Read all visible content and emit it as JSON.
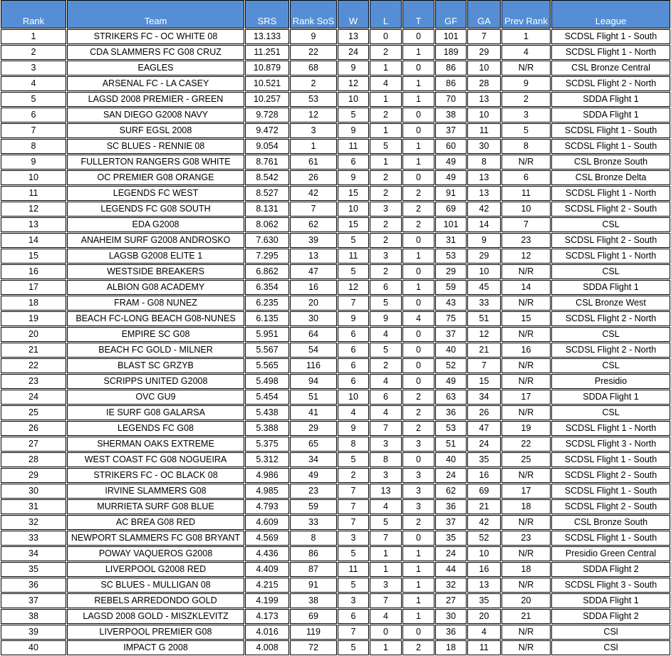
{
  "header_color": "#558ED5",
  "columns": [
    "Rank",
    "Team",
    "SRS",
    "Rank SoS",
    "W",
    "L",
    "T",
    "GF",
    "GA",
    "Prev Rank",
    "League"
  ],
  "rows": [
    [
      "1",
      "STRIKERS FC - OC WHITE 08",
      "13.133",
      "9",
      "13",
      "0",
      "0",
      "101",
      "7",
      "1",
      "SCDSL Flight 1 - South"
    ],
    [
      "2",
      "CDA SLAMMERS FC G08 CRUZ",
      "11.251",
      "22",
      "24",
      "2",
      "1",
      "189",
      "29",
      "4",
      "SCDSL Flight 1 - North"
    ],
    [
      "3",
      "EAGLES",
      "10.879",
      "68",
      "9",
      "1",
      "0",
      "86",
      "10",
      "N/R",
      "CSL Bronze Central"
    ],
    [
      "4",
      "ARSENAL FC - LA CASEY",
      "10.521",
      "2",
      "12",
      "4",
      "1",
      "86",
      "28",
      "9",
      "SCDSL Flight 2 - North"
    ],
    [
      "5",
      "LAGSD 2008 PREMIER - GREEN",
      "10.257",
      "53",
      "10",
      "1",
      "1",
      "70",
      "13",
      "2",
      "SDDA Flight 1"
    ],
    [
      "6",
      "SAN DIEGO G2008 NAVY",
      "9.728",
      "12",
      "5",
      "2",
      "0",
      "38",
      "10",
      "3",
      "SDDA Flight 1"
    ],
    [
      "7",
      "SURF EGSL 2008",
      "9.472",
      "3",
      "9",
      "1",
      "0",
      "37",
      "11",
      "5",
      "SCDSL Flight 1 - South"
    ],
    [
      "8",
      "SC BLUES - RENNIE 08",
      "9.054",
      "1",
      "11",
      "5",
      "1",
      "60",
      "30",
      "8",
      "SCDSL Flight 1 - South"
    ],
    [
      "9",
      "FULLERTON RANGERS G08 WHITE",
      "8.761",
      "61",
      "6",
      "1",
      "1",
      "49",
      "8",
      "N/R",
      "CSL Bronze South"
    ],
    [
      "10",
      "OC PREMIER G08 ORANGE",
      "8.542",
      "26",
      "9",
      "2",
      "0",
      "49",
      "13",
      "6",
      "CSL Bronze Delta"
    ],
    [
      "11",
      "LEGENDS FC WEST",
      "8.527",
      "42",
      "15",
      "2",
      "2",
      "91",
      "13",
      "11",
      "SCDSL Flight 1 - North"
    ],
    [
      "12",
      "LEGENDS FC G08 SOUTH",
      "8.131",
      "7",
      "10",
      "3",
      "2",
      "69",
      "42",
      "10",
      "SCDSL Flight 2 - South"
    ],
    [
      "13",
      "EDA G2008",
      "8.062",
      "62",
      "15",
      "2",
      "2",
      "101",
      "14",
      "7",
      "CSL"
    ],
    [
      "14",
      "ANAHEIM SURF G2008 ANDROSKO",
      "7.630",
      "39",
      "5",
      "2",
      "0",
      "31",
      "9",
      "23",
      "SCDSL Flight 2 - South"
    ],
    [
      "15",
      "LAGSB G2008 ELITE 1",
      "7.295",
      "13",
      "11",
      "3",
      "1",
      "53",
      "29",
      "12",
      "SCDSL Flight 1 - North"
    ],
    [
      "16",
      "WESTSIDE BREAKERS",
      "6.862",
      "47",
      "5",
      "2",
      "0",
      "29",
      "10",
      "N/R",
      "CSL"
    ],
    [
      "17",
      "ALBION G08 ACADEMY",
      "6.354",
      "16",
      "12",
      "6",
      "1",
      "59",
      "45",
      "14",
      "SDDA Flight 1"
    ],
    [
      "18",
      "FRAM - G08 NUNEZ",
      "6.235",
      "20",
      "7",
      "5",
      "0",
      "43",
      "33",
      "N/R",
      "CSL Bronze West"
    ],
    [
      "19",
      "BEACH FC-LONG BEACH G08-NUNES",
      "6.135",
      "30",
      "9",
      "9",
      "4",
      "75",
      "51",
      "15",
      "SCDSL Flight 2 - North"
    ],
    [
      "20",
      "EMPIRE SC G08",
      "5.951",
      "64",
      "6",
      "4",
      "0",
      "37",
      "12",
      "N/R",
      "CSL"
    ],
    [
      "21",
      "BEACH FC GOLD - MILNER",
      "5.567",
      "54",
      "6",
      "5",
      "0",
      "40",
      "21",
      "16",
      "SCDSL Flight 2 - North"
    ],
    [
      "22",
      "BLAST SC GRZYB",
      "5.565",
      "116",
      "6",
      "2",
      "0",
      "52",
      "7",
      "N/R",
      "CSL"
    ],
    [
      "23",
      "SCRIPPS UNITED G2008",
      "5.498",
      "94",
      "6",
      "4",
      "0",
      "49",
      "15",
      "N/R",
      "Presidio"
    ],
    [
      "24",
      "OVC GU9",
      "5.454",
      "51",
      "10",
      "6",
      "2",
      "63",
      "34",
      "17",
      "SDDA Flight 1"
    ],
    [
      "25",
      "IE SURF G08 GALARSA",
      "5.438",
      "41",
      "4",
      "4",
      "2",
      "36",
      "26",
      "N/R",
      "CSL"
    ],
    [
      "26",
      "LEGENDS FC G08",
      "5.388",
      "29",
      "9",
      "7",
      "2",
      "53",
      "47",
      "19",
      "SCDSL Flight 1 - North"
    ],
    [
      "27",
      "SHERMAN OAKS EXTREME",
      "5.375",
      "65",
      "8",
      "3",
      "3",
      "51",
      "24",
      "22",
      "SCDSL Flight 3 - North"
    ],
    [
      "28",
      "WEST COAST FC G08 NOGUEIRA",
      "5.312",
      "34",
      "5",
      "8",
      "0",
      "40",
      "35",
      "25",
      "SCDSL Flight 1 - South"
    ],
    [
      "29",
      "STRIKERS FC - OC BLACK 08",
      "4.986",
      "49",
      "2",
      "3",
      "3",
      "24",
      "16",
      "N/R",
      "SCDSL Flight 2 - South"
    ],
    [
      "30",
      "IRVINE SLAMMERS G08",
      "4.985",
      "23",
      "7",
      "13",
      "3",
      "62",
      "69",
      "17",
      "SCDSL Flight 1 - South"
    ],
    [
      "31",
      "MURRIETA SURF G08 BLUE",
      "4.793",
      "59",
      "7",
      "4",
      "3",
      "36",
      "21",
      "18",
      "SCDSL Flight 2 - South"
    ],
    [
      "32",
      "AC BREA G08 RED",
      "4.609",
      "33",
      "7",
      "5",
      "2",
      "37",
      "42",
      "N/R",
      "CSL Bronze South"
    ],
    [
      "33",
      "NEWPORT SLAMMERS FC G08 BRYANT",
      "4.569",
      "8",
      "3",
      "7",
      "0",
      "35",
      "52",
      "23",
      "SCDSL Flight 1 - South"
    ],
    [
      "34",
      "POWAY VAQUEROS G2008",
      "4.436",
      "86",
      "5",
      "1",
      "1",
      "24",
      "10",
      "N/R",
      "Presidio Green Central"
    ],
    [
      "35",
      "LIVERPOOL G2008 RED",
      "4.409",
      "87",
      "11",
      "1",
      "1",
      "44",
      "16",
      "18",
      "SDDA Flight 2"
    ],
    [
      "36",
      "SC BLUES - MULLIGAN 08",
      "4.215",
      "91",
      "5",
      "3",
      "1",
      "32",
      "13",
      "N/R",
      "SCDSL Flight 3 - South"
    ],
    [
      "37",
      "REBELS ARREDONDO GOLD",
      "4.199",
      "38",
      "3",
      "7",
      "1",
      "27",
      "35",
      "20",
      "SDDA Flight 1"
    ],
    [
      "38",
      "LAGSD 2008 GOLD - MISZKLEVITZ",
      "4.173",
      "69",
      "6",
      "4",
      "1",
      "30",
      "20",
      "21",
      "SDDA Flight 2"
    ],
    [
      "39",
      "LIVERPOOL PREMIER G08",
      "4.016",
      "119",
      "7",
      "0",
      "0",
      "36",
      "4",
      "N/R",
      "CSl"
    ],
    [
      "40",
      "IMPACT G 2008",
      "4.008",
      "72",
      "5",
      "1",
      "2",
      "18",
      "11",
      "N/R",
      "CSl"
    ]
  ]
}
